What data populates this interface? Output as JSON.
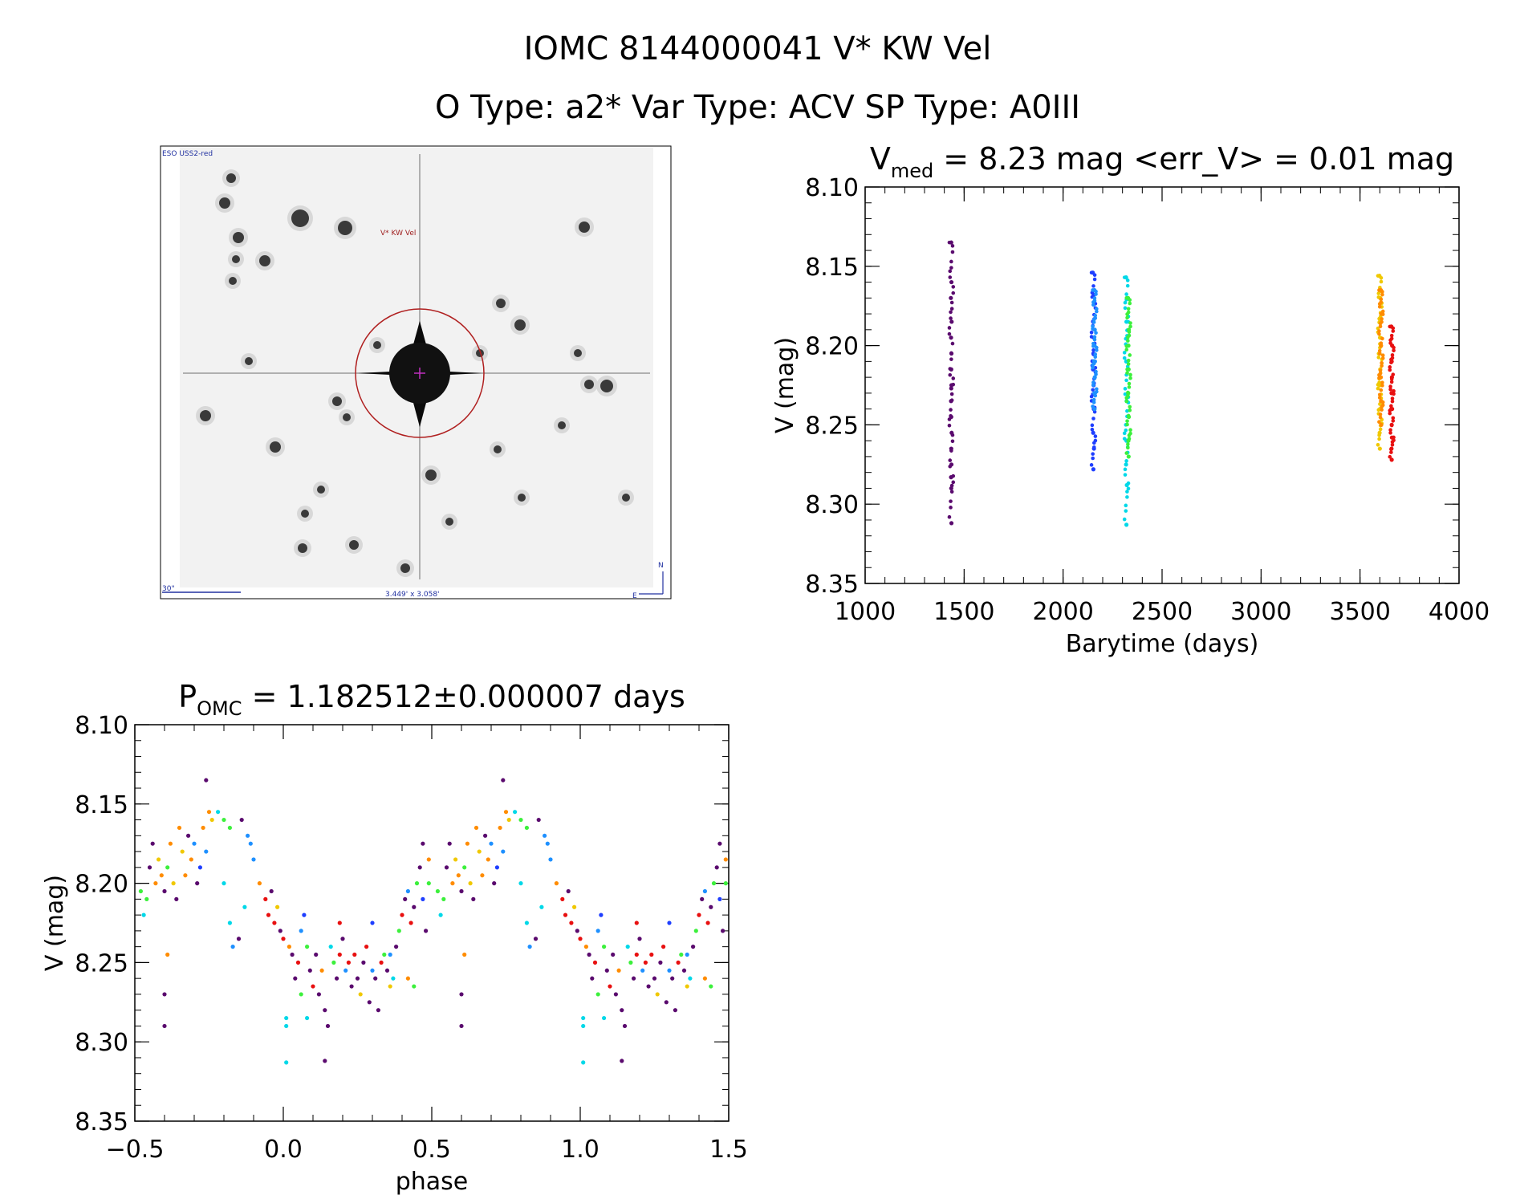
{
  "header": {
    "title": "IOMC 8144000041    V* KW Vel",
    "subtitle": "O Type: a2*  Var Type: ACV  SP Type: A0III"
  },
  "finder": {
    "survey_label": "ESO USS2-red",
    "target_label": "V* KW Vel",
    "scale_label": "30\"",
    "fov_label": "3.449' x 3.058'",
    "north_label": "N",
    "east_label": "E"
  },
  "colors": {
    "palette": [
      "#5a0a6e",
      "#1f3fff",
      "#1e90ff",
      "#00d8e8",
      "#3cf03c",
      "#f0c800",
      "#ff8c00",
      "#e81010"
    ]
  },
  "chart_data": [
    {
      "id": "lightcurve",
      "type": "scatter",
      "title_main": "V",
      "title_sub": "med",
      "title_rest": " = 8.23 mag <err_V> = 0.01 mag",
      "xlabel": "Barytime (days)",
      "ylabel": "V (mag)",
      "xlim": [
        1000,
        4000
      ],
      "ylim": [
        8.35,
        8.1
      ],
      "xticks": [
        1000,
        1500,
        2000,
        2500,
        3000,
        3500,
        4000
      ],
      "xtick_labels": [
        "1000",
        "1500",
        "2000",
        "2500",
        "3000",
        "3500",
        "4000"
      ],
      "yticks": [
        8.1,
        8.15,
        8.2,
        8.25,
        8.3,
        8.35
      ],
      "ytick_labels": [
        "8.10",
        "8.15",
        "8.20",
        "8.25",
        "8.30",
        "8.35"
      ],
      "series": [
        {
          "name": "1435",
          "color_index": 0,
          "x": [
            1435,
            1436,
            1433,
            1437,
            1434,
            1436,
            1435,
            1436,
            1434,
            1435,
            1437,
            1435,
            1436,
            1434,
            1435,
            1436,
            1435
          ],
          "y": [
            8.135,
            8.16,
            8.17,
            8.185,
            8.195,
            8.205,
            8.215,
            8.225,
            8.235,
            8.245,
            8.255,
            8.265,
            8.275,
            8.283,
            8.29,
            8.312,
            8.227
          ]
        },
        {
          "name": "2155",
          "color_index": 1,
          "x": [
            2150,
            2155,
            2152,
            2156,
            2153,
            2151,
            2154,
            2155,
            2152,
            2156,
            2153
          ],
          "y": [
            8.154,
            8.168,
            8.185,
            8.195,
            8.205,
            8.215,
            8.225,
            8.24,
            8.255,
            8.265,
            8.278
          ]
        },
        {
          "name": "2160",
          "color_index": 2,
          "x": [
            2158,
            2160,
            2159,
            2161,
            2160,
            2158,
            2159
          ],
          "y": [
            8.165,
            8.19,
            8.2,
            8.21,
            8.22,
            8.23,
            8.24
          ]
        },
        {
          "name": "2320",
          "color_index": 3,
          "x": [
            2318,
            2322,
            2320,
            2319,
            2321,
            2320,
            2318,
            2322,
            2320
          ],
          "y": [
            8.157,
            8.17,
            8.185,
            8.21,
            8.235,
            8.26,
            8.275,
            8.288,
            8.313
          ]
        },
        {
          "name": "2330",
          "color_index": 4,
          "x": [
            2328,
            2332,
            2330,
            2331,
            2329,
            2332,
            2330,
            2331
          ],
          "y": [
            8.17,
            8.19,
            8.2,
            8.215,
            8.23,
            8.245,
            8.26,
            8.27
          ]
        },
        {
          "name": "3600",
          "color_index": 5,
          "x": [
            3598,
            3602,
            3600,
            3601,
            3599,
            3602,
            3600,
            3601,
            3599,
            3600
          ],
          "y": [
            8.156,
            8.17,
            8.185,
            8.195,
            8.205,
            8.215,
            8.225,
            8.24,
            8.255,
            8.265
          ]
        },
        {
          "name": "3605",
          "color_index": 6,
          "x": [
            3605,
            3607,
            3606,
            3605,
            3606,
            3607
          ],
          "y": [
            8.165,
            8.18,
            8.2,
            8.22,
            8.235,
            8.25
          ]
        },
        {
          "name": "3660",
          "color_index": 7,
          "x": [
            3658,
            3662,
            3660,
            3661,
            3659,
            3662,
            3660,
            3661,
            3659,
            3660
          ],
          "y": [
            8.188,
            8.2,
            8.21,
            8.22,
            8.23,
            8.24,
            8.25,
            8.258,
            8.265,
            8.272
          ]
        }
      ]
    },
    {
      "id": "phasecurve",
      "type": "scatter",
      "title_main": "P",
      "title_sub": "OMC",
      "title_rest": " = 1.182512±0.000007 days",
      "xlabel": "phase",
      "ylabel": "V (mag)",
      "xlim": [
        -0.5,
        1.5
      ],
      "ylim": [
        8.35,
        8.1
      ],
      "xticks": [
        -0.5,
        0.0,
        0.5,
        1.0,
        1.5
      ],
      "xtick_labels": [
        "−0.5",
        "0.0",
        "0.5",
        "1.0",
        "1.5"
      ],
      "yticks": [
        8.1,
        8.15,
        8.2,
        8.25,
        8.3,
        8.35
      ],
      "ytick_labels": [
        "8.10",
        "8.15",
        "8.20",
        "8.25",
        "8.30",
        "8.35"
      ],
      "profile_note": "points plotted for phases -0.5..0.5 and repeated +1.0",
      "points": [
        [
          -0.48,
          8.205,
          4
        ],
        [
          -0.47,
          8.22,
          3
        ],
        [
          -0.46,
          8.21,
          4
        ],
        [
          -0.45,
          8.19,
          0
        ],
        [
          -0.44,
          8.175,
          0
        ],
        [
          -0.43,
          8.2,
          6
        ],
        [
          -0.42,
          8.185,
          5
        ],
        [
          -0.41,
          8.195,
          6
        ],
        [
          -0.4,
          8.205,
          0
        ],
        [
          -0.39,
          8.19,
          4
        ],
        [
          -0.38,
          8.175,
          6
        ],
        [
          -0.37,
          8.2,
          5
        ],
        [
          -0.36,
          8.21,
          0
        ],
        [
          -0.35,
          8.165,
          6
        ],
        [
          -0.34,
          8.18,
          5
        ],
        [
          -0.33,
          8.195,
          6
        ],
        [
          -0.32,
          8.17,
          0
        ],
        [
          -0.31,
          8.185,
          6
        ],
        [
          -0.3,
          8.175,
          2
        ],
        [
          -0.29,
          8.2,
          0
        ],
        [
          -0.28,
          8.19,
          1
        ],
        [
          -0.27,
          8.165,
          6
        ],
        [
          -0.26,
          8.18,
          2
        ],
        [
          -0.25,
          8.155,
          6
        ],
        [
          -0.24,
          8.16,
          5
        ],
        [
          -0.4,
          8.27,
          0
        ],
        [
          -0.4,
          8.29,
          0
        ],
        [
          -0.39,
          8.245,
          6
        ],
        [
          -0.2,
          8.16,
          4
        ],
        [
          -0.18,
          8.165,
          4
        ],
        [
          -0.14,
          8.16,
          0
        ],
        [
          -0.12,
          8.17,
          2
        ],
        [
          -0.11,
          8.175,
          2
        ],
        [
          -0.26,
          8.135,
          0
        ],
        [
          -0.22,
          8.155,
          3
        ],
        [
          -0.2,
          8.2,
          3
        ],
        [
          -0.18,
          8.225,
          3
        ],
        [
          -0.17,
          8.24,
          2
        ],
        [
          -0.15,
          8.235,
          0
        ],
        [
          -0.13,
          8.215,
          3
        ],
        [
          -0.1,
          8.185,
          2
        ],
        [
          -0.08,
          8.2,
          6
        ],
        [
          -0.06,
          8.21,
          7
        ],
        [
          -0.05,
          8.22,
          7
        ],
        [
          -0.04,
          8.205,
          0
        ],
        [
          -0.03,
          8.225,
          7
        ],
        [
          -0.02,
          8.215,
          5
        ],
        [
          -0.01,
          8.23,
          0
        ],
        [
          0.0,
          8.235,
          7
        ],
        [
          0.01,
          8.285,
          3
        ],
        [
          0.01,
          8.29,
          3
        ],
        [
          0.02,
          8.24,
          6
        ],
        [
          0.03,
          8.245,
          0
        ],
        [
          0.04,
          8.26,
          0
        ],
        [
          0.05,
          8.25,
          7
        ],
        [
          0.06,
          8.23,
          2
        ],
        [
          0.07,
          8.22,
          1
        ],
        [
          0.08,
          8.24,
          4
        ],
        [
          0.09,
          8.255,
          0
        ],
        [
          0.1,
          8.265,
          7
        ],
        [
          0.11,
          8.245,
          0
        ],
        [
          0.12,
          8.27,
          0
        ],
        [
          0.13,
          8.255,
          6
        ],
        [
          0.14,
          8.28,
          0
        ],
        [
          0.15,
          8.29,
          0
        ],
        [
          0.16,
          8.24,
          3
        ],
        [
          0.17,
          8.25,
          4
        ],
        [
          0.18,
          8.26,
          0
        ],
        [
          0.19,
          8.245,
          7
        ],
        [
          0.2,
          8.235,
          0
        ],
        [
          0.21,
          8.255,
          2
        ],
        [
          0.22,
          8.25,
          7
        ],
        [
          0.23,
          8.265,
          0
        ],
        [
          0.24,
          8.245,
          7
        ],
        [
          0.25,
          8.26,
          0
        ],
        [
          0.26,
          8.27,
          5
        ],
        [
          0.27,
          8.25,
          0
        ],
        [
          0.28,
          8.24,
          7
        ],
        [
          0.29,
          8.275,
          0
        ],
        [
          0.3,
          8.255,
          2
        ],
        [
          0.31,
          8.26,
          0
        ],
        [
          0.32,
          8.28,
          0
        ],
        [
          0.33,
          8.25,
          7
        ],
        [
          0.34,
          8.245,
          4
        ],
        [
          0.35,
          8.255,
          0
        ],
        [
          0.36,
          8.265,
          5
        ],
        [
          0.37,
          8.26,
          3
        ],
        [
          0.38,
          8.24,
          0
        ],
        [
          0.39,
          8.23,
          4
        ],
        [
          0.4,
          8.22,
          7
        ],
        [
          0.41,
          8.21,
          0
        ],
        [
          0.42,
          8.205,
          2
        ],
        [
          0.43,
          8.225,
          7
        ],
        [
          0.44,
          8.215,
          0
        ],
        [
          0.45,
          8.2,
          4
        ],
        [
          0.46,
          8.19,
          0
        ],
        [
          0.47,
          8.21,
          1
        ],
        [
          0.48,
          8.23,
          0
        ],
        [
          0.49,
          8.2,
          4
        ],
        [
          0.14,
          8.312,
          0
        ],
        [
          0.01,
          8.313,
          3
        ],
        [
          0.06,
          8.27,
          4
        ],
        [
          0.08,
          8.285,
          3
        ],
        [
          0.19,
          8.225,
          7
        ],
        [
          0.36,
          8.245,
          2
        ],
        [
          0.42,
          8.26,
          6
        ],
        [
          0.44,
          8.265,
          4
        ],
        [
          0.47,
          8.175,
          0
        ],
        [
          0.49,
          8.185,
          6
        ],
        [
          0.3,
          8.225,
          1
        ]
      ]
    }
  ]
}
